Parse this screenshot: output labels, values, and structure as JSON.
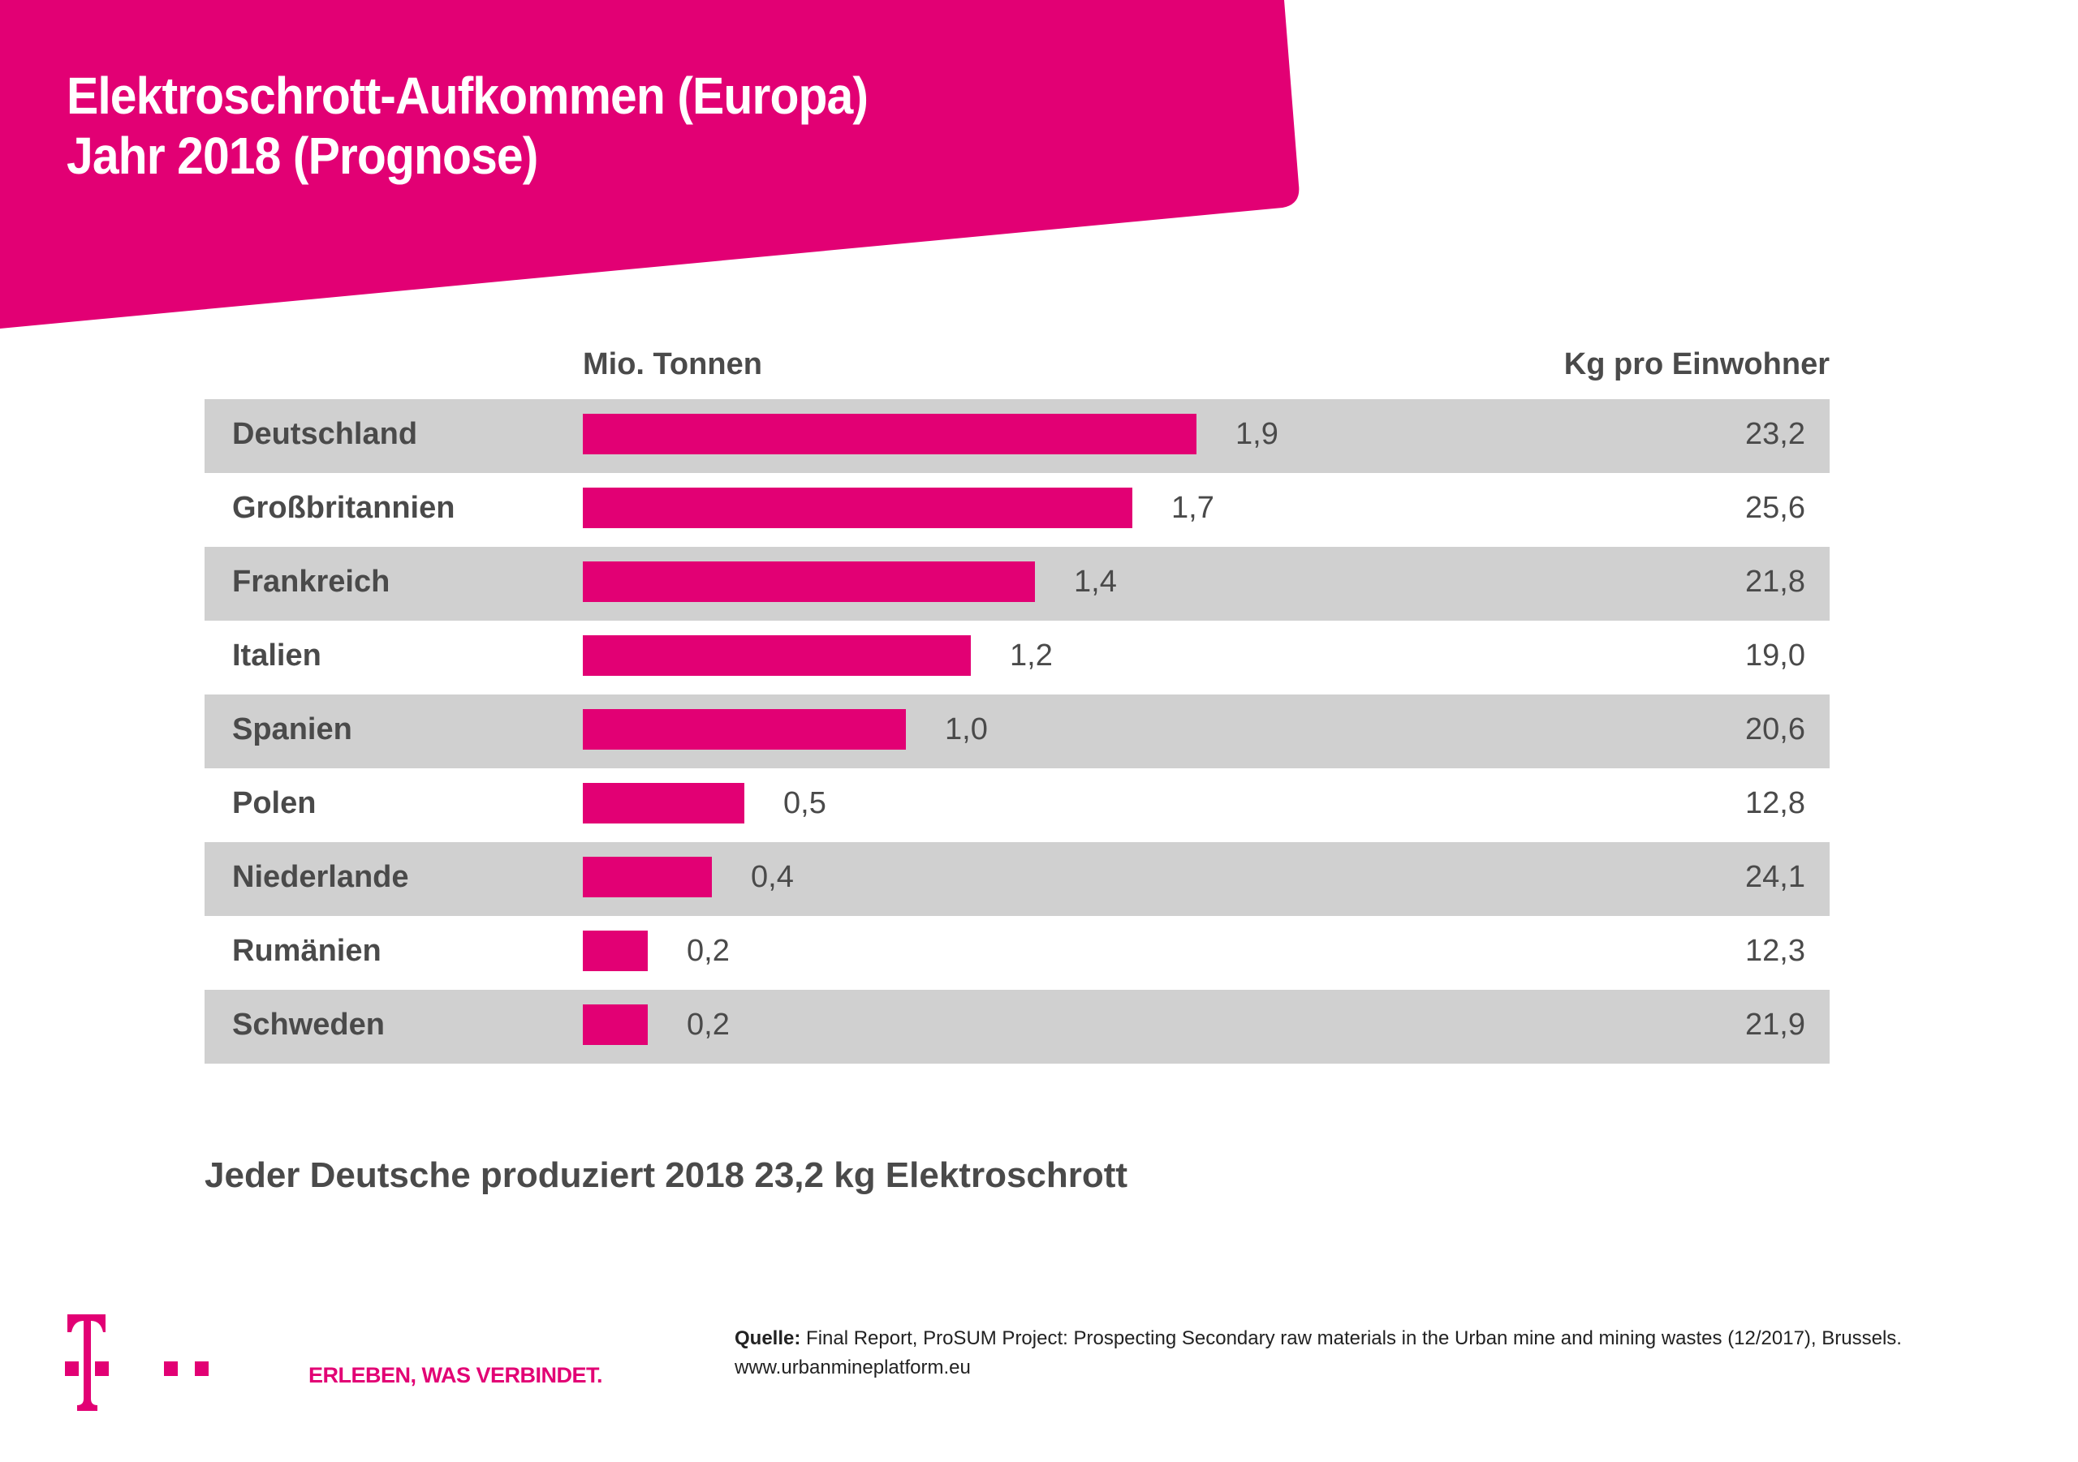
{
  "header": {
    "title_line1": "Elektroschrott-Aufkommen (Europa)",
    "title_line2": "Jahr 2018 (Prognose)"
  },
  "columns": {
    "tonnen": "Mio. Tonnen",
    "kg": "Kg pro Einwohner"
  },
  "colors": {
    "brand": "#e20074",
    "row_shade": "#d0d0d0",
    "text": "#4a4a4a"
  },
  "chart_data": {
    "type": "bar",
    "orientation": "horizontal",
    "title": "Elektroschrott-Aufkommen (Europa) Jahr 2018 (Prognose)",
    "xlabel": "Mio. Tonnen",
    "ylabel": "",
    "xlim": [
      0,
      1.9
    ],
    "categories": [
      "Deutschland",
      "Großbritannien",
      "Frankreich",
      "Italien",
      "Spanien",
      "Polen",
      "Niederlande",
      "Rumänien",
      "Schweden"
    ],
    "series": [
      {
        "name": "Mio. Tonnen",
        "values": [
          1.9,
          1.7,
          1.4,
          1.2,
          1.0,
          0.5,
          0.4,
          0.2,
          0.2
        ],
        "labels": [
          "1,9",
          "1,7",
          "1,4",
          "1,2",
          "1,0",
          "0,5",
          "0,4",
          "0,2",
          "0,2"
        ]
      },
      {
        "name": "Kg pro Einwohner",
        "values": [
          23.2,
          25.6,
          21.8,
          19.0,
          20.6,
          12.8,
          24.1,
          12.3,
          21.9
        ],
        "labels": [
          "23,2",
          "25,6",
          "21,8",
          "19,0",
          "20,6",
          "12,8",
          "24,1",
          "12,3",
          "21,9"
        ]
      }
    ],
    "grid": false,
    "legend": "none"
  },
  "summary": "Jeder Deutsche produziert 2018 23,2 kg Elektroschrott",
  "footer": {
    "tagline": "ERLEBEN, WAS VERBINDET.",
    "source_label": "Quelle:",
    "source_text": " Final Report, ProSUM Project: Prospecting Secondary raw materials in the Urban mine and mining wastes (12/2017), Brussels.",
    "source_url": "www.urbanmineplatform.eu"
  }
}
